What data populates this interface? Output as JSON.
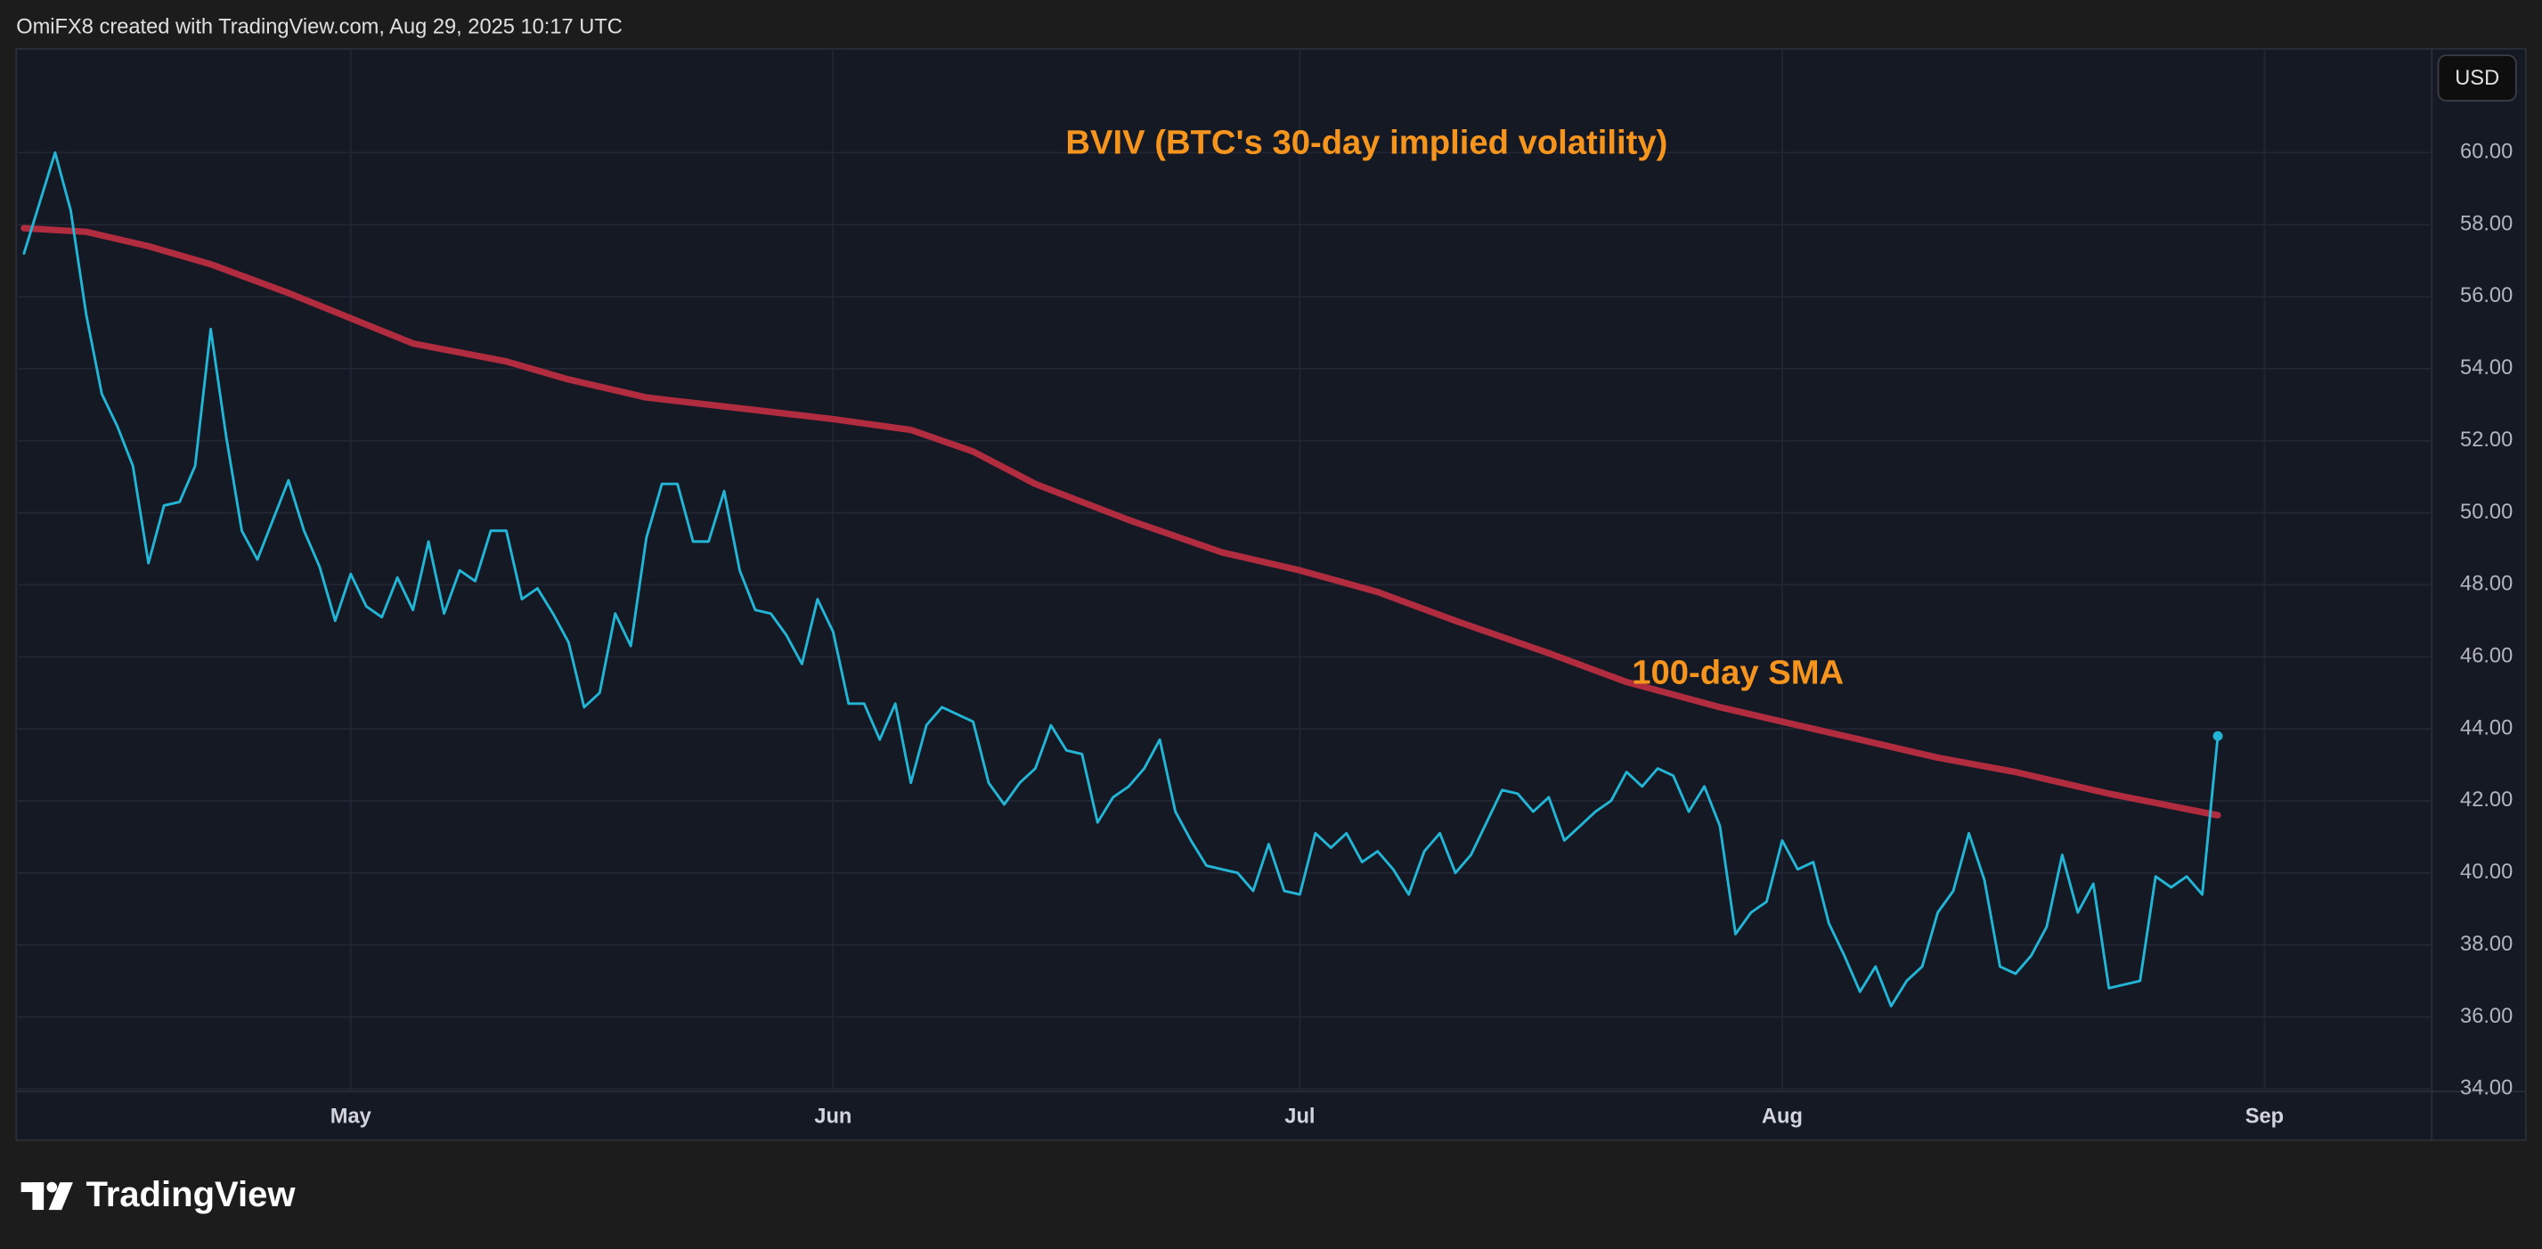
{
  "header": "OmiFX8 created with TradingView.com, Aug 29, 2025 10:17 UTC",
  "currency": "USD",
  "brand": "TradingView",
  "chart_data": {
    "type": "line",
    "title": "BVIV (BTC's 30-day implied volatility)",
    "annotations": [
      {
        "text": "100-day SMA"
      }
    ],
    "x": [
      100,
      101,
      102,
      103,
      104,
      105,
      106,
      107,
      108,
      109,
      110,
      111,
      112,
      113,
      114,
      115,
      116,
      117,
      118,
      119,
      120,
      121,
      122,
      123,
      124,
      125,
      126,
      127,
      128,
      129,
      130,
      131,
      132,
      133,
      134,
      135,
      136,
      137,
      138,
      139,
      140,
      141,
      142,
      143,
      144,
      145,
      146,
      147,
      148,
      149,
      150,
      151,
      152,
      153,
      154,
      155,
      156,
      157,
      158,
      159,
      160,
      161,
      162,
      163,
      164,
      165,
      166,
      167,
      168,
      169,
      170,
      171,
      172,
      173,
      174,
      175,
      176,
      177,
      178,
      179,
      180,
      181,
      182,
      183,
      184,
      185,
      186,
      187,
      188,
      189,
      190,
      191,
      192,
      193,
      194,
      195,
      196,
      197,
      198,
      199,
      200,
      201,
      202,
      203,
      204,
      205,
      206,
      207,
      208,
      209,
      210,
      211,
      212,
      213,
      214,
      215,
      216,
      217,
      218,
      219,
      220,
      221,
      222,
      223,
      224,
      225,
      226,
      227,
      228,
      229,
      230,
      231,
      232,
      233,
      234,
      235,
      236,
      237,
      238,
      239,
      240,
      241
    ],
    "series": [
      {
        "color": "#22b5d6",
        "values": [
          57.2,
          58.6,
          60.0,
          58.4,
          55.5,
          53.3,
          52.4,
          51.3,
          48.6,
          50.2,
          50.3,
          51.3,
          55.1,
          52.1,
          49.5,
          48.7,
          49.8,
          50.9,
          49.5,
          48.5,
          47.0,
          48.3,
          47.4,
          47.1,
          48.2,
          47.3,
          49.2,
          47.2,
          48.4,
          48.1,
          49.5,
          49.5,
          47.6,
          47.9,
          47.2,
          46.4,
          44.6,
          45.0,
          47.2,
          46.3,
          49.3,
          50.8,
          50.8,
          49.2,
          49.2,
          50.6,
          48.4,
          47.3,
          47.2,
          46.6,
          45.8,
          47.6,
          46.7,
          44.7,
          44.7,
          43.7,
          44.7,
          42.5,
          44.1,
          44.6,
          44.4,
          44.2,
          42.5,
          41.9,
          42.5,
          42.9,
          44.1,
          43.4,
          43.3,
          41.4,
          42.1,
          42.4,
          42.9,
          43.7,
          41.7,
          40.9,
          40.2,
          40.1,
          40.0,
          39.5,
          40.8,
          39.5,
          39.4,
          41.1,
          40.7,
          41.1,
          40.3,
          40.6,
          40.1,
          39.4,
          40.6,
          41.1,
          40.0,
          40.5,
          41.4,
          42.3,
          42.2,
          41.7,
          42.1,
          40.9,
          41.3,
          41.7,
          42.0,
          42.8,
          42.4,
          42.9,
          42.7,
          41.7,
          42.4,
          41.3,
          38.3,
          38.9,
          39.2,
          40.9,
          40.1,
          40.3,
          38.6,
          37.7,
          36.7,
          37.4,
          36.3,
          37.0,
          37.4,
          38.9,
          39.5,
          41.1,
          39.8,
          37.4,
          37.2,
          37.7,
          38.5,
          40.5,
          38.9,
          39.7,
          36.8,
          36.9,
          37.0,
          39.9,
          39.6,
          39.9,
          39.4,
          43.8
        ]
      },
      {
        "color": "#b02c3e",
        "x": [
          100,
          104,
          108,
          112,
          117,
          121,
          125,
          131,
          135,
          140,
          146,
          152,
          157,
          161,
          165,
          171,
          177,
          182,
          187,
          192,
          198,
          203,
          209,
          213,
          218,
          223,
          228,
          234,
          241
        ],
        "values": [
          57.9,
          57.8,
          57.4,
          56.9,
          56.1,
          55.4,
          54.7,
          54.2,
          53.7,
          53.2,
          52.9,
          52.6,
          52.3,
          51.7,
          50.8,
          49.8,
          48.9,
          48.4,
          47.8,
          47.0,
          46.1,
          45.3,
          44.6,
          44.2,
          43.7,
          43.2,
          42.8,
          42.2,
          41.6
        ]
      }
    ],
    "xlim": [
      99.5,
      254.75
    ],
    "xticks": [
      {
        "value": 121,
        "label": "May"
      },
      {
        "value": 152,
        "label": "Jun"
      },
      {
        "value": 182,
        "label": "Jul"
      },
      {
        "value": 213,
        "label": "Aug"
      },
      {
        "value": 244,
        "label": "Sep"
      }
    ],
    "ylim": [
      33.93,
      62.88
    ],
    "yticks": [
      {
        "value": 34,
        "label": "34.00"
      },
      {
        "value": 36,
        "label": "36.00"
      },
      {
        "value": 38,
        "label": "38.00"
      },
      {
        "value": 40,
        "label": "40.00"
      },
      {
        "value": 42,
        "label": "42.00"
      },
      {
        "value": 44,
        "label": "44.00"
      },
      {
        "value": 46,
        "label": "46.00"
      },
      {
        "value": 48,
        "label": "48.00"
      },
      {
        "value": 50,
        "label": "50.00"
      },
      {
        "value": 52,
        "label": "52.00"
      },
      {
        "value": 54,
        "label": "54.00"
      },
      {
        "value": 56,
        "label": "56.00"
      },
      {
        "value": 58,
        "label": "58.00"
      },
      {
        "value": 60,
        "label": "60.00"
      }
    ],
    "grid": true,
    "annotation_color": "#f6951e"
  }
}
